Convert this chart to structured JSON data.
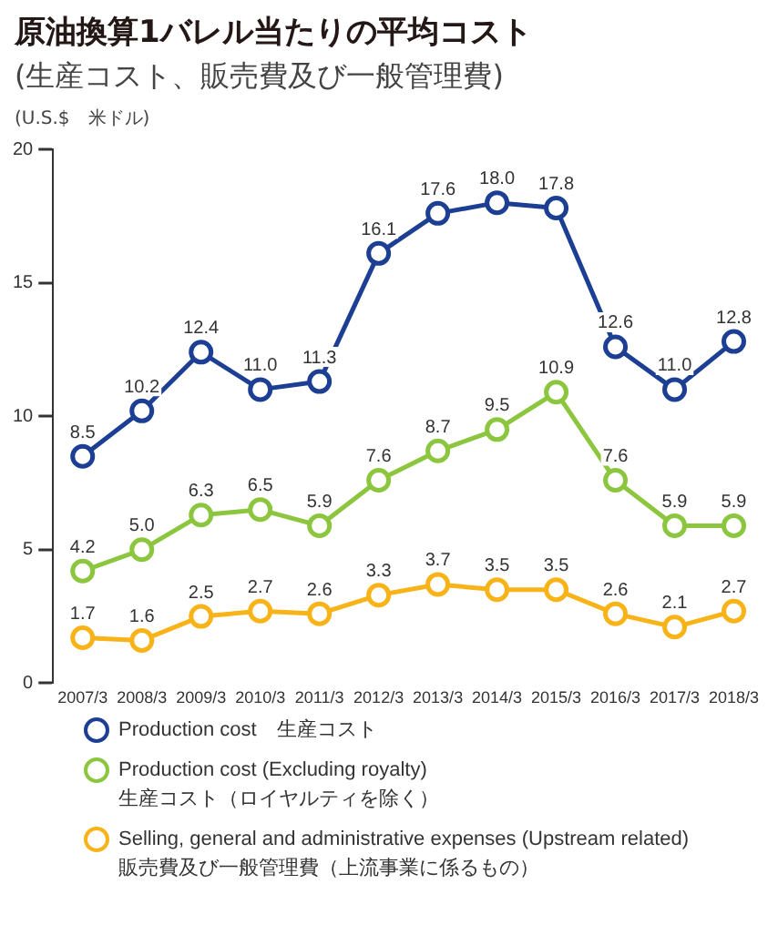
{
  "chart_data": {
    "type": "line",
    "title": "原油換算1バレル当たりの平均コスト",
    "subtitle": "(生産コスト、販売費及び一般管理費)",
    "ylabel": "(U.S.$　米ドル)",
    "categories": [
      "2007/3",
      "2008/3",
      "2009/3",
      "2010/3",
      "2011/3",
      "2012/3",
      "2013/3",
      "2014/3",
      "2015/3",
      "2016/3",
      "2017/3",
      "2018/3"
    ],
    "series": [
      {
        "name": "Production cost　生産コスト",
        "color": "#1c3f94",
        "values": [
          8.5,
          10.2,
          12.4,
          11.0,
          11.3,
          16.1,
          17.6,
          18.0,
          17.8,
          12.6,
          11.0,
          12.8
        ],
        "value_labels": [
          "8.5",
          "10.2",
          "12.4",
          "11.0",
          "11.3",
          "16.1",
          "17.6",
          "18.0",
          "17.8",
          "12.6",
          "11.0",
          "12.8"
        ]
      },
      {
        "name": "Production cost (Excluding royalty)\n生産コスト（ロイヤルティを除く）",
        "color": "#8cc63f",
        "values": [
          4.2,
          5.0,
          6.3,
          6.5,
          5.9,
          7.6,
          8.7,
          9.5,
          10.9,
          7.6,
          5.9,
          5.9
        ],
        "value_labels": [
          "4.2",
          "5.0",
          "6.3",
          "6.5",
          "5.9",
          "7.6",
          "8.7",
          "9.5",
          "10.9",
          "7.6",
          "5.9",
          "5.9"
        ]
      },
      {
        "name": "Selling, general and administrative expenses (Upstream related)\n販売費及び一般管理費（上流事業に係るもの）",
        "color": "#f7b318",
        "values": [
          1.7,
          1.6,
          2.5,
          2.7,
          2.6,
          3.3,
          3.7,
          3.5,
          3.5,
          2.6,
          2.1,
          2.7
        ],
        "value_labels": [
          "1.7",
          "1.6",
          "2.5",
          "2.7",
          "2.6",
          "3.3",
          "3.7",
          "3.5",
          "3.5",
          "2.6",
          "2.1",
          "2.7"
        ]
      }
    ],
    "ylim": [
      0,
      20
    ],
    "yticks": [
      0,
      5,
      10,
      15,
      20
    ],
    "grid": false,
    "legend": "bottom",
    "marker": "circle",
    "line_style": "solid"
  }
}
